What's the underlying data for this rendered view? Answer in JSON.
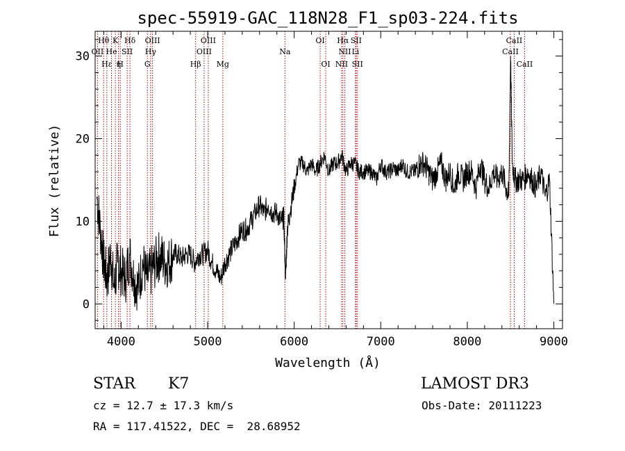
{
  "chart_data": {
    "type": "line",
    "title": "spec-55919-GAC_118N28_F1_sp03-224.fits",
    "xlabel": "Wavelength (Å)",
    "ylabel": "Flux (relative)",
    "xlim": [
      3700,
      9100
    ],
    "ylim": [
      -3,
      33
    ],
    "xticks": [
      4000,
      5000,
      6000,
      7000,
      8000,
      9000
    ],
    "yticks": [
      0,
      10,
      20,
      30
    ],
    "grid": false,
    "series": [
      {
        "color": "#000000",
        "x": [
          3720,
          3760,
          3800,
          3840,
          3880,
          3920,
          3960,
          4000,
          4050,
          4100,
          4150,
          4200,
          4250,
          4300,
          4350,
          4400,
          4450,
          4500,
          4550,
          4600,
          4650,
          4700,
          4750,
          4800,
          4850,
          4900,
          4950,
          5000,
          5050,
          5100,
          5150,
          5200,
          5250,
          5300,
          5350,
          5400,
          5450,
          5500,
          5550,
          5600,
          5650,
          5700,
          5750,
          5800,
          5850,
          5880,
          5900,
          5920,
          5950,
          6000,
          6050,
          6100,
          6150,
          6200,
          6250,
          6300,
          6350,
          6400,
          6450,
          6500,
          6550,
          6600,
          6650,
          6700,
          6750,
          6800,
          6850,
          6900,
          6950,
          7000,
          7050,
          7100,
          7150,
          7200,
          7250,
          7300,
          7350,
          7400,
          7450,
          7500,
          7550,
          7600,
          7650,
          7700,
          7750,
          7800,
          7850,
          7900,
          7950,
          8000,
          8050,
          8100,
          8150,
          8200,
          8250,
          8300,
          8350,
          8400,
          8450,
          8480,
          8500,
          8520,
          8550,
          8600,
          8650,
          8700,
          8750,
          8800,
          8850,
          8900,
          8950,
          9000
        ],
        "values": [
          13,
          9,
          5,
          3,
          6,
          2,
          5,
          4,
          3,
          6,
          3,
          2,
          5,
          3,
          4,
          5,
          6,
          5,
          5,
          6,
          6,
          5.5,
          6,
          6,
          5,
          6,
          6,
          6.5,
          5,
          4,
          3,
          5,
          6,
          7,
          8,
          9,
          9,
          10,
          11,
          12,
          11,
          12,
          11,
          11,
          10,
          10.5,
          3,
          9,
          11,
          14,
          17,
          17,
          16,
          17,
          16,
          17,
          18,
          16,
          17,
          17,
          18,
          16,
          17,
          17,
          16,
          16,
          16,
          16,
          15,
          17,
          16,
          16,
          16.5,
          16,
          17,
          16,
          16,
          16,
          17,
          17,
          16,
          15,
          16,
          17,
          15,
          16,
          14,
          16,
          15,
          16,
          16,
          14,
          17,
          15,
          14,
          16,
          15,
          16,
          14,
          13,
          30,
          17,
          15,
          15,
          15,
          16,
          15,
          14,
          16,
          13,
          15,
          0
        ]
      }
    ],
    "spectral_lines": [
      {
        "label": "Hθ",
        "x": 3798,
        "row": 1
      },
      {
        "label": "OII",
        "x": 3727,
        "row": 2
      },
      {
        "label": "Hε",
        "x": 3835,
        "row": 3
      },
      {
        "label": "K",
        "x": 3934,
        "row": 1
      },
      {
        "label": "He",
        "x": 3889,
        "row": 2
      },
      {
        "label": "η",
        "x": 3970,
        "row": 3
      },
      {
        "label": "H",
        "x": 3990,
        "row": 3
      },
      {
        "label": "Hδ",
        "x": 4102,
        "row": 1
      },
      {
        "label": "SII",
        "x": 4070,
        "row": 2
      },
      {
        "label": "OIII",
        "x": 4363,
        "row": 1
      },
      {
        "label": "Hγ",
        "x": 4341,
        "row": 2
      },
      {
        "label": "G",
        "x": 4304,
        "row": 3
      },
      {
        "label": "OIII",
        "x": 5007,
        "row": 1
      },
      {
        "label": "OIII",
        "x": 4959,
        "row": 2
      },
      {
        "label": "Hβ",
        "x": 4861,
        "row": 3
      },
      {
        "label": "Mg",
        "x": 5175,
        "row": 3
      },
      {
        "label": "Na",
        "x": 5893,
        "row": 2
      },
      {
        "label": "OI",
        "x": 6300,
        "row": 1
      },
      {
        "label": "OI",
        "x": 6364,
        "row": 3
      },
      {
        "label": "Hα",
        "x": 6563,
        "row": 1
      },
      {
        "label": "SII",
        "x": 6716,
        "row": 1
      },
      {
        "label": "NII",
        "x": 6584,
        "row": 2
      },
      {
        "label": "Li",
        "x": 6708,
        "row": 2
      },
      {
        "label": "NII",
        "x": 6548,
        "row": 3
      },
      {
        "label": "SII",
        "x": 6731,
        "row": 3
      },
      {
        "label": "CaII",
        "x": 8542,
        "row": 1
      },
      {
        "label": "CaII",
        "x": 8498,
        "row": 2
      },
      {
        "label": "CaII",
        "x": 8662,
        "row": 3
      }
    ]
  },
  "info": {
    "object_type": "STAR",
    "subclass": "K7",
    "survey": "LAMOST DR3",
    "redshift": "cz = 12.7 ± 17.3 km/s",
    "obs_date": "Obs-Date: 20111223",
    "coords": "RA = 117.41522, DEC =  28.68952"
  },
  "colors": {
    "line_marker": "#b00000",
    "spectrum": "#000000"
  }
}
